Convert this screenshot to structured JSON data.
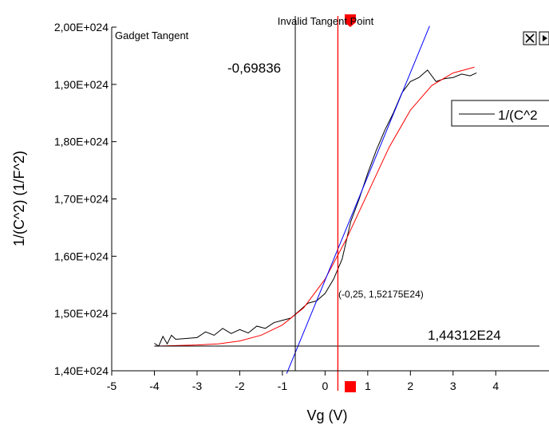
{
  "chart_data": {
    "type": "line",
    "xlabel": "Vg (V)",
    "ylabel": "1/(C^2) (1/F^2)",
    "xlim": [
      -5,
      4.5
    ],
    "ylim": [
      1.4e+24,
      2e+24
    ],
    "x_ticks": [
      "-5",
      "-4",
      "-3",
      "-2",
      "-1",
      "0",
      "1",
      "2",
      "3",
      "4"
    ],
    "x_tick_values": [
      -5,
      -4,
      -3,
      -2,
      -1,
      0,
      1,
      2,
      3,
      4
    ],
    "y_ticks": [
      "1,40E+024",
      "1,50E+024",
      "1,60E+024",
      "1,70E+024",
      "1,80E+024",
      "1,90E+024",
      "2,00E+024"
    ],
    "y_tick_values": [
      1.4e+24,
      1.5e+24,
      1.6e+24,
      1.7e+24,
      1.8e+24,
      1.9e+24,
      2e+24
    ],
    "series": [
      {
        "name": "1/(C^2",
        "color": "#000000",
        "x": [
          -4.0,
          -3.9,
          -3.8,
          -3.7,
          -3.6,
          -3.5,
          -3.0,
          -2.8,
          -2.6,
          -2.4,
          -2.2,
          -2.0,
          -1.8,
          -1.6,
          -1.4,
          -1.2,
          -1.0,
          -0.8,
          -0.6,
          -0.4,
          -0.2,
          0.0,
          0.2,
          0.4,
          0.6,
          0.8,
          1.0,
          1.2,
          1.4,
          1.6,
          1.8,
          2.0,
          2.2,
          2.4,
          2.6,
          2.8,
          3.0,
          3.2,
          3.4,
          3.55
        ],
        "y": [
          1.448e+24,
          1.443e+24,
          1.46e+24,
          1.447e+24,
          1.462e+24,
          1.455e+24,
          1.458e+24,
          1.468e+24,
          1.462e+24,
          1.474e+24,
          1.465e+24,
          1.472e+24,
          1.466e+24,
          1.478e+24,
          1.474e+24,
          1.484e+24,
          1.488e+24,
          1.492e+24,
          1.505e+24,
          1.518e+24,
          1.522e+24,
          1.535e+24,
          1.56e+24,
          1.595e+24,
          1.66e+24,
          1.7e+24,
          1.745e+24,
          1.785e+24,
          1.82e+24,
          1.85e+24,
          1.885e+24,
          1.905e+24,
          1.912e+24,
          1.925e+24,
          1.905e+24,
          1.91e+24,
          1.912e+24,
          1.918e+24,
          1.915e+24,
          1.92e+24
        ]
      },
      {
        "name": "",
        "color": "#ff0000",
        "x": [
          -4.0,
          -3.5,
          -3.0,
          -2.5,
          -2.0,
          -1.5,
          -1.0,
          -0.5,
          0.0,
          0.5,
          1.0,
          1.5,
          2.0,
          2.5,
          3.0,
          3.5
        ],
        "y": [
          1.443e+24,
          1.444e+24,
          1.445e+24,
          1.447e+24,
          1.452e+24,
          1.462e+24,
          1.48e+24,
          1.51e+24,
          1.56e+24,
          1.63e+24,
          1.71e+24,
          1.79e+24,
          1.855e+24,
          1.898e+24,
          1.92e+24,
          1.93e+24
        ]
      }
    ],
    "tangent": {
      "color": "#0000ff",
      "x": [
        -0.9,
        2.45
      ],
      "y": [
        1.395e+24,
        2.002e+24
      ]
    },
    "hline": {
      "y": 1.44312e+24,
      "label": "1,44312E24",
      "color": "#000000"
    },
    "vline": {
      "x": -0.69836,
      "label": "-0,69836",
      "color": "#000000"
    },
    "gadget_line": {
      "x": 0.3,
      "color": "#ff0000"
    },
    "point_label": "(-0,25, 1,52175E24)",
    "gadget_title": "Gadget Tangent",
    "gadget_status": "Invalid Tangent Point",
    "legend_label": "1/(C^2",
    "grid": false
  }
}
